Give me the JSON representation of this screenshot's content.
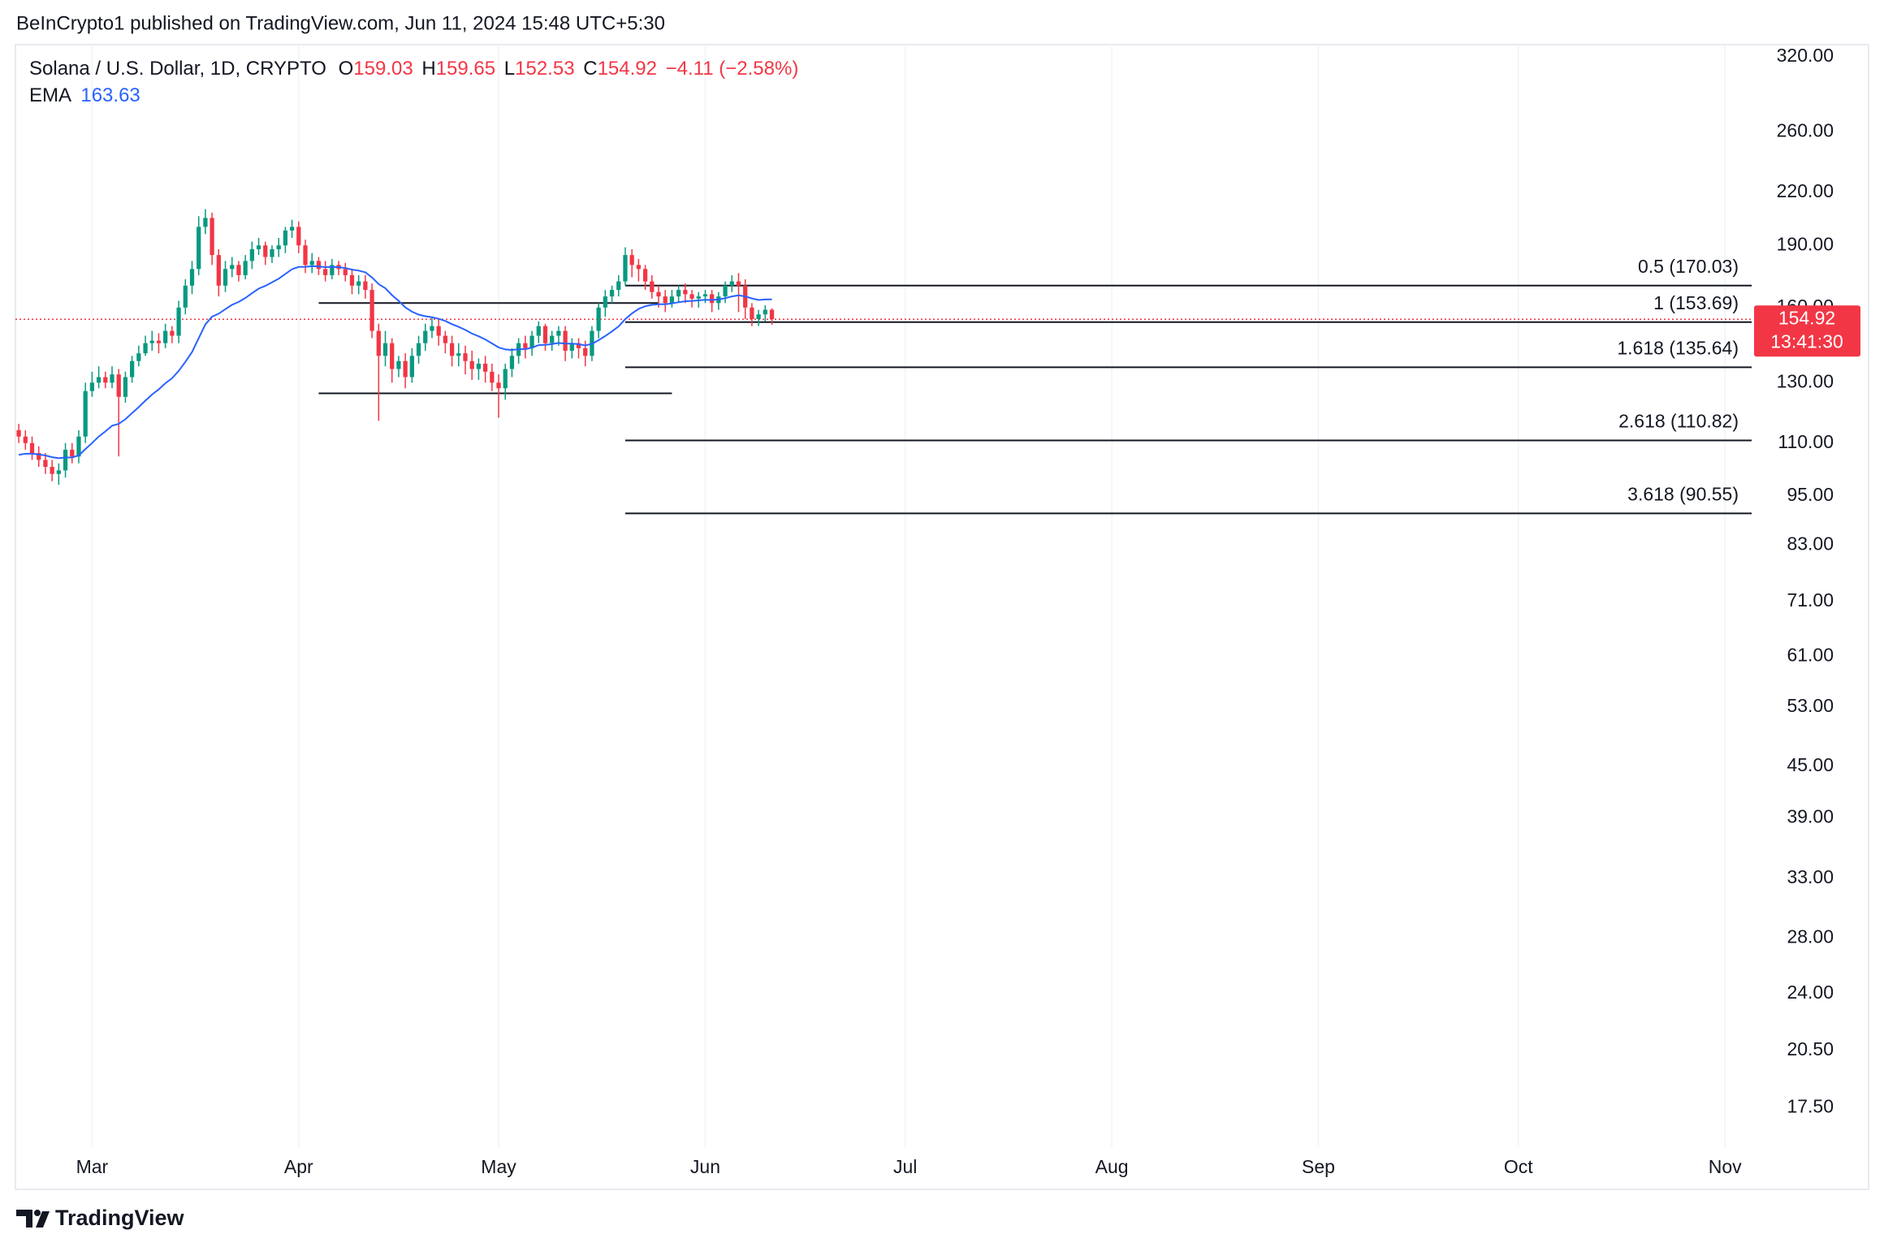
{
  "header": "BeInCrypto1 published on TradingView.com, Jun 11, 2024 15:48 UTC+5:30",
  "footer": "TradingView",
  "chart_data": {
    "type": "candlestick",
    "legend": {
      "symbol": "Solana / U.S. Dollar, 1D, CRYPTO",
      "items": [
        {
          "key": "O",
          "value": 159.03
        },
        {
          "key": "H",
          "value": 159.65
        },
        {
          "key": "L",
          "value": 152.53
        },
        {
          "key": "C",
          "value": 154.92
        }
      ],
      "change_label": "−4.11 (−2.58%)"
    },
    "up_color": "#089981",
    "down_color": "#f23645",
    "grid": true,
    "log_scale": true,
    "xlim": [
      -0.5,
      260
    ],
    "ylim": [
      15.7,
      331
    ],
    "xticks": [
      {
        "value": 11,
        "label": "Mar"
      },
      {
        "value": 42,
        "label": "Apr"
      },
      {
        "value": 72,
        "label": "May"
      },
      {
        "value": 103,
        "label": "Jun"
      },
      {
        "value": 133,
        "label": "Jul"
      },
      {
        "value": 164,
        "label": "Aug"
      },
      {
        "value": 195,
        "label": "Sep"
      },
      {
        "value": 225,
        "label": "Oct"
      },
      {
        "value": 256,
        "label": "Nov"
      }
    ],
    "yticks": [
      {
        "value": 320,
        "label": "320.00"
      },
      {
        "value": 260,
        "label": "260.00"
      },
      {
        "value": 220,
        "label": "220.00"
      },
      {
        "value": 190,
        "label": "190.00"
      },
      {
        "value": 160,
        "label": "160.00"
      },
      {
        "value": 130,
        "label": "130.00"
      },
      {
        "value": 110,
        "label": "110.00"
      },
      {
        "value": 95,
        "label": "95.00"
      },
      {
        "value": 83,
        "label": "83.00"
      },
      {
        "value": 71,
        "label": "71.00"
      },
      {
        "value": 61,
        "label": "61.00"
      },
      {
        "value": 53,
        "label": "53.00"
      },
      {
        "value": 45,
        "label": "45.00"
      },
      {
        "value": 39,
        "label": "39.00"
      },
      {
        "value": 33,
        "label": "33.00"
      },
      {
        "value": 28,
        "label": "28.00"
      },
      {
        "value": 24,
        "label": "24.00"
      },
      {
        "value": 20.5,
        "label": "20.50"
      },
      {
        "value": 17.5,
        "label": "17.50"
      }
    ],
    "open": [
      114,
      112,
      110,
      107,
      105,
      103,
      101,
      102,
      108,
      106,
      112,
      127,
      130,
      132,
      130,
      133,
      125,
      132,
      138,
      141,
      145,
      146,
      145,
      150,
      148,
      160,
      170,
      178,
      200,
      205,
      185,
      170,
      178,
      180,
      175,
      182,
      188,
      190,
      184,
      188,
      190,
      198,
      200,
      190,
      180,
      182,
      178,
      175,
      180,
      178,
      175,
      170,
      172,
      168,
      150,
      140,
      145,
      135,
      138,
      132,
      140,
      145,
      150,
      152,
      148,
      145,
      140,
      141,
      138,
      135,
      137,
      134,
      130,
      128,
      135,
      140,
      145,
      143,
      148,
      152,
      145,
      148,
      150,
      142,
      145,
      143,
      140,
      150,
      160,
      165,
      168,
      172,
      185,
      180,
      178,
      172,
      167,
      165,
      162,
      165,
      168,
      166,
      164,
      165,
      166,
      162,
      165,
      170,
      172,
      170,
      160,
      155,
      157,
      159.03
    ],
    "high": [
      116,
      114,
      112,
      109,
      107,
      105,
      104,
      110,
      110,
      114,
      130,
      134,
      136,
      134,
      136,
      135,
      134,
      140,
      144,
      148,
      150,
      149,
      153,
      152,
      163,
      173,
      182,
      206,
      210,
      208,
      188,
      182,
      184,
      182,
      185,
      192,
      194,
      192,
      190,
      194,
      200,
      204,
      203,
      193,
      186,
      184,
      182,
      183,
      182,
      181,
      178,
      175,
      175,
      171,
      153,
      150,
      147,
      140,
      141,
      143,
      148,
      153,
      156,
      155,
      150,
      148,
      145,
      144,
      142,
      139,
      140,
      137,
      133,
      137,
      143,
      147,
      148,
      150,
      154,
      153,
      150,
      152,
      152,
      147,
      147,
      146,
      152,
      162,
      168,
      170,
      175,
      189,
      188,
      183,
      180,
      175,
      170,
      168,
      168,
      170,
      171,
      168,
      167,
      168,
      168,
      167,
      172,
      175,
      176,
      173,
      162,
      159,
      161,
      159.65
    ],
    "low": [
      110,
      108,
      105,
      103,
      101,
      99,
      98,
      100,
      104,
      104,
      110,
      125,
      128,
      128,
      128,
      106,
      123,
      130,
      136,
      140,
      142,
      141,
      143,
      145,
      145,
      157,
      166,
      175,
      196,
      180,
      165,
      167,
      174,
      172,
      173,
      178,
      185,
      180,
      181,
      184,
      186,
      194,
      186,
      176,
      176,
      175,
      172,
      173,
      175,
      172,
      166,
      166,
      164,
      147,
      117,
      136,
      130,
      132,
      128,
      130,
      137,
      142,
      147,
      144,
      141,
      136,
      136,
      133,
      131,
      131,
      130,
      127,
      118,
      124,
      132,
      137,
      139,
      140,
      145,
      142,
      142,
      144,
      138,
      139,
      139,
      136,
      138,
      147,
      156,
      162,
      165,
      170,
      174,
      172,
      168,
      164,
      160,
      158,
      160,
      162,
      162,
      160,
      160,
      162,
      158,
      159,
      162,
      167,
      158,
      155,
      152,
      152,
      154,
      152.53
    ],
    "close": [
      112,
      110,
      107,
      105,
      103,
      101,
      102,
      108,
      106,
      112,
      127,
      130,
      132,
      130,
      133,
      125,
      132,
      138,
      141,
      145,
      146,
      145,
      150,
      148,
      160,
      170,
      178,
      200,
      205,
      185,
      170,
      178,
      180,
      175,
      182,
      188,
      190,
      184,
      188,
      190,
      198,
      200,
      190,
      180,
      182,
      178,
      175,
      180,
      178,
      175,
      170,
      172,
      168,
      150,
      140,
      145,
      135,
      138,
      132,
      140,
      145,
      150,
      152,
      148,
      145,
      140,
      141,
      138,
      135,
      137,
      134,
      130,
      128,
      135,
      140,
      145,
      143,
      148,
      152,
      145,
      148,
      150,
      142,
      145,
      143,
      140,
      150,
      160,
      165,
      168,
      172,
      185,
      180,
      178,
      172,
      167,
      165,
      162,
      165,
      168,
      166,
      164,
      165,
      166,
      162,
      165,
      170,
      172,
      170,
      160,
      155,
      157,
      159.03,
      154.92
    ],
    "ema": {
      "name": "EMA",
      "value": 163.63,
      "color": "#2962ff",
      "values": [
        106.5,
        106.8,
        106.8,
        106.6,
        106.3,
        105.8,
        105.5,
        105.7,
        105.7,
        106.3,
        108.2,
        110,
        112,
        113.6,
        115.4,
        116,
        117.5,
        119.5,
        121.5,
        123.7,
        125.8,
        127.6,
        129.8,
        131.6,
        134.3,
        137.7,
        141.5,
        147,
        152.7,
        156,
        157.3,
        159.3,
        161.2,
        162.5,
        164.3,
        166.5,
        168.6,
        169.9,
        171.6,
        173.3,
        175.6,
        177.9,
        179,
        179.1,
        179.4,
        179.3,
        178.9,
        179,
        178.9,
        178.5,
        177.7,
        177.2,
        176.4,
        173.9,
        170.7,
        168.8,
        165.6,
        163,
        160.1,
        158.2,
        156.9,
        156.2,
        155.8,
        155.1,
        154.2,
        152.8,
        151.7,
        150.4,
        148.9,
        147.8,
        146.5,
        144.9,
        143.3,
        142.5,
        142.3,
        142.6,
        142.6,
        143.2,
        144.2,
        144.3,
        144.6,
        145.1,
        144.8,
        144.8,
        144.6,
        144.1,
        144.7,
        146.2,
        147.9,
        149.8,
        151.9,
        155,
        157.4,
        159.4,
        160.6,
        161.2,
        161.5,
        161.5,
        161.8,
        162.4,
        162.8,
        163,
        163.2,
        163.5,
        163.4,
        163.6,
        164.2,
        165,
        165.5,
        165,
        164.1,
        163.4,
        163.6,
        163.63
      ]
    },
    "fib_start": 91,
    "fib_levels": [
      {
        "value": 170.03,
        "label": "0.5 (170.03)"
      },
      {
        "value": 153.69,
        "label": "1 (153.69)"
      },
      {
        "value": 135.64,
        "label": "1.618 (135.64)"
      },
      {
        "value": 110.82,
        "label": "2.618 (110.82)"
      },
      {
        "value": 90.55,
        "label": "3.618 (90.55)"
      }
    ],
    "lines": [
      {
        "value": 162,
        "start": 45,
        "end": 96
      },
      {
        "value": 126.2,
        "start": 45,
        "end": 98
      }
    ],
    "last_price": {
      "value": 154.92,
      "countdown": "13:41:30"
    }
  }
}
